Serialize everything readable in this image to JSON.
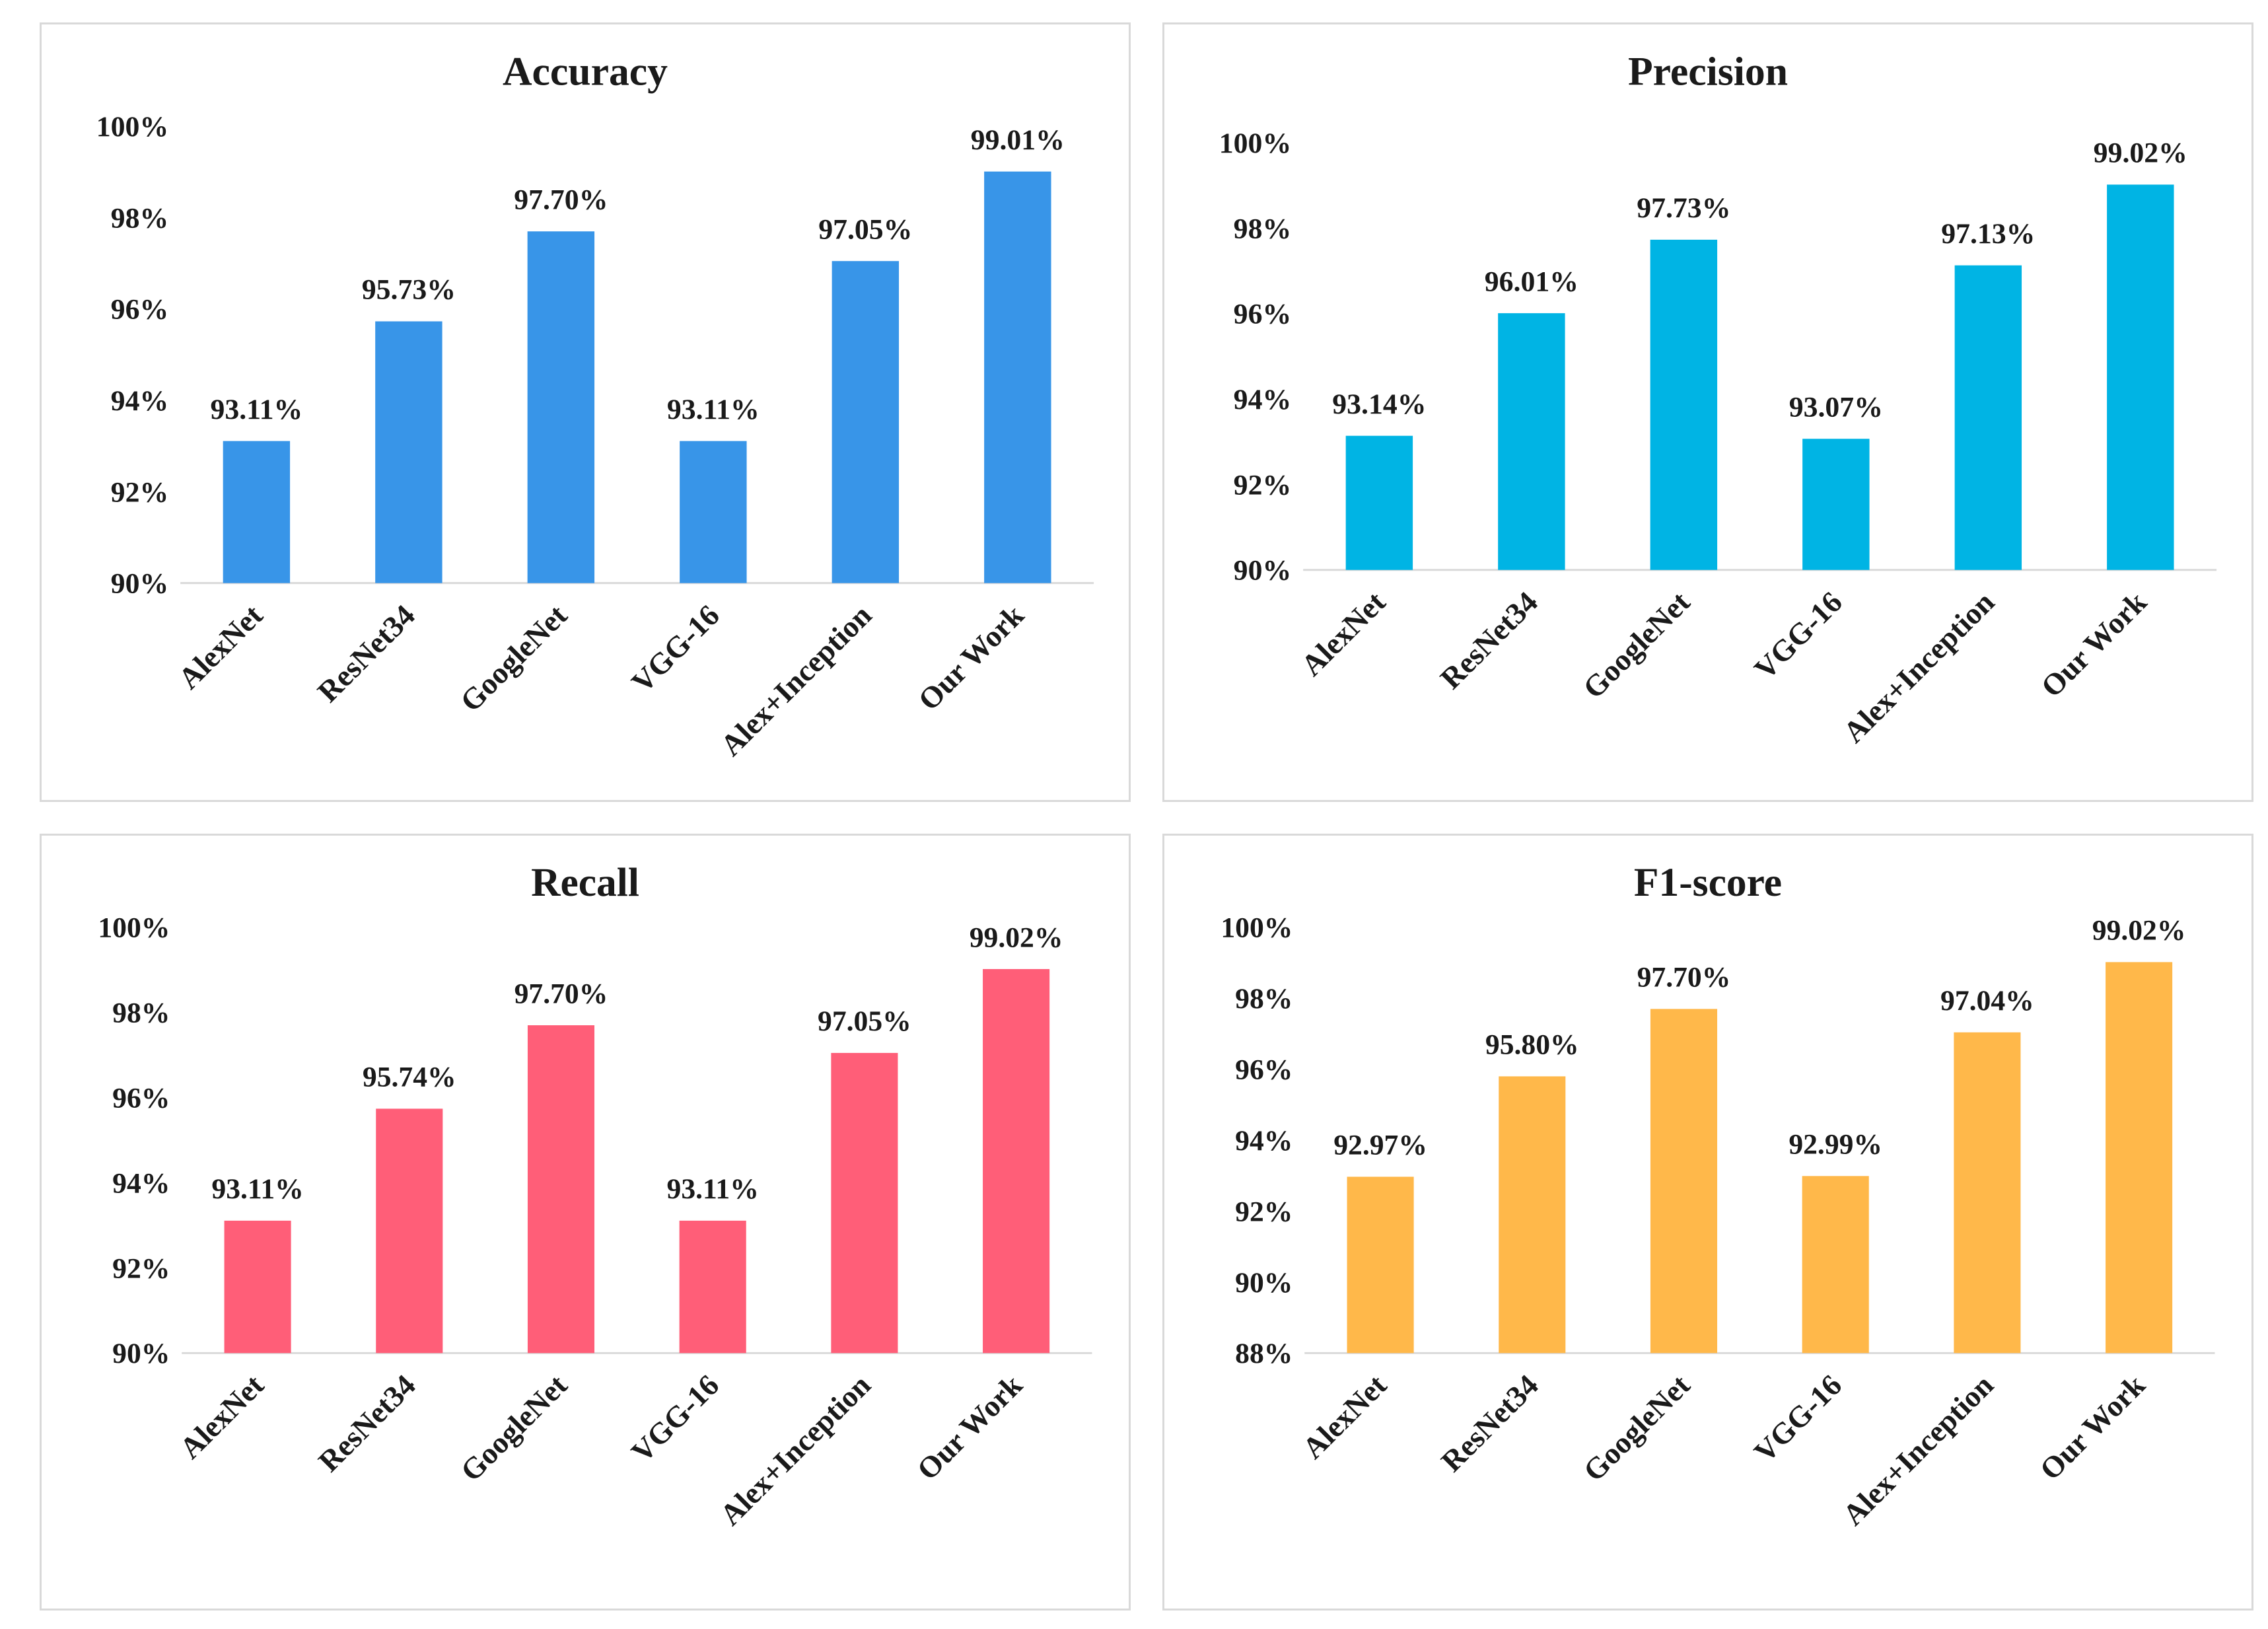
{
  "chart_data": [
    {
      "type": "bar",
      "title": "Accuracy",
      "categories": [
        "AlexNet",
        "ResNet34",
        "GoogleNet",
        "VGG-16",
        "Alex+Inception",
        "Our Work"
      ],
      "values": [
        93.11,
        95.73,
        97.7,
        93.11,
        97.05,
        99.01
      ],
      "data_labels": [
        "93.11%",
        "95.73%",
        "97.70%",
        "93.11%",
        "97.05%",
        "99.01%"
      ],
      "yticks": [
        90,
        92,
        94,
        96,
        98,
        100
      ],
      "ytick_labels": [
        "90%",
        "92%",
        "94%",
        "96%",
        "98%",
        "100%"
      ],
      "ylim": [
        90,
        100
      ],
      "color": "#3895e8",
      "xlabel": "",
      "ylabel": ""
    },
    {
      "type": "bar",
      "title": "Precision",
      "categories": [
        "AlexNet",
        "ResNet34",
        "GoogleNet",
        "VGG-16",
        "Alex+Inception",
        "Our Work"
      ],
      "values": [
        93.14,
        96.01,
        97.73,
        93.07,
        97.13,
        99.02
      ],
      "data_labels": [
        "93.14%",
        "96.01%",
        "97.73%",
        "93.07%",
        "97.13%",
        "99.02%"
      ],
      "yticks": [
        90,
        92,
        94,
        96,
        98,
        100
      ],
      "ytick_labels": [
        "90%",
        "92%",
        "94%",
        "96%",
        "98%",
        "100%"
      ],
      "ylim": [
        90,
        100
      ],
      "color": "#00b4e4",
      "xlabel": "",
      "ylabel": ""
    },
    {
      "type": "bar",
      "title": "Recall",
      "categories": [
        "AlexNet",
        "ResNet34",
        "GoogleNet",
        "VGG-16",
        "Alex+Inception",
        "Our Work"
      ],
      "values": [
        93.11,
        95.74,
        97.7,
        93.11,
        97.05,
        99.02
      ],
      "data_labels": [
        "93.11%",
        "95.74%",
        "97.70%",
        "93.11%",
        "97.05%",
        "99.02%"
      ],
      "yticks": [
        90,
        92,
        94,
        96,
        98,
        100
      ],
      "ytick_labels": [
        "90%",
        "92%",
        "94%",
        "96%",
        "98%",
        "100%"
      ],
      "ylim": [
        90,
        100
      ],
      "color": "#ff5e78",
      "xlabel": "",
      "ylabel": ""
    },
    {
      "type": "bar",
      "title": "F1-score",
      "categories": [
        "AlexNet",
        "ResNet34",
        "GoogleNet",
        "VGG-16",
        "Alex+Inception",
        "Our Work"
      ],
      "values": [
        92.97,
        95.8,
        97.7,
        92.99,
        97.04,
        99.02
      ],
      "data_labels": [
        "92.97%",
        "95.80%",
        "97.70%",
        "92.99%",
        "97.04%",
        "99.02%"
      ],
      "yticks": [
        88,
        90,
        92,
        94,
        96,
        98,
        100
      ],
      "ytick_labels": [
        "88%",
        "90%",
        "92%",
        "94%",
        "96%",
        "98%",
        "100%"
      ],
      "ylim": [
        88,
        100
      ],
      "color": "#ffb84a",
      "xlabel": "",
      "ylabel": ""
    }
  ]
}
